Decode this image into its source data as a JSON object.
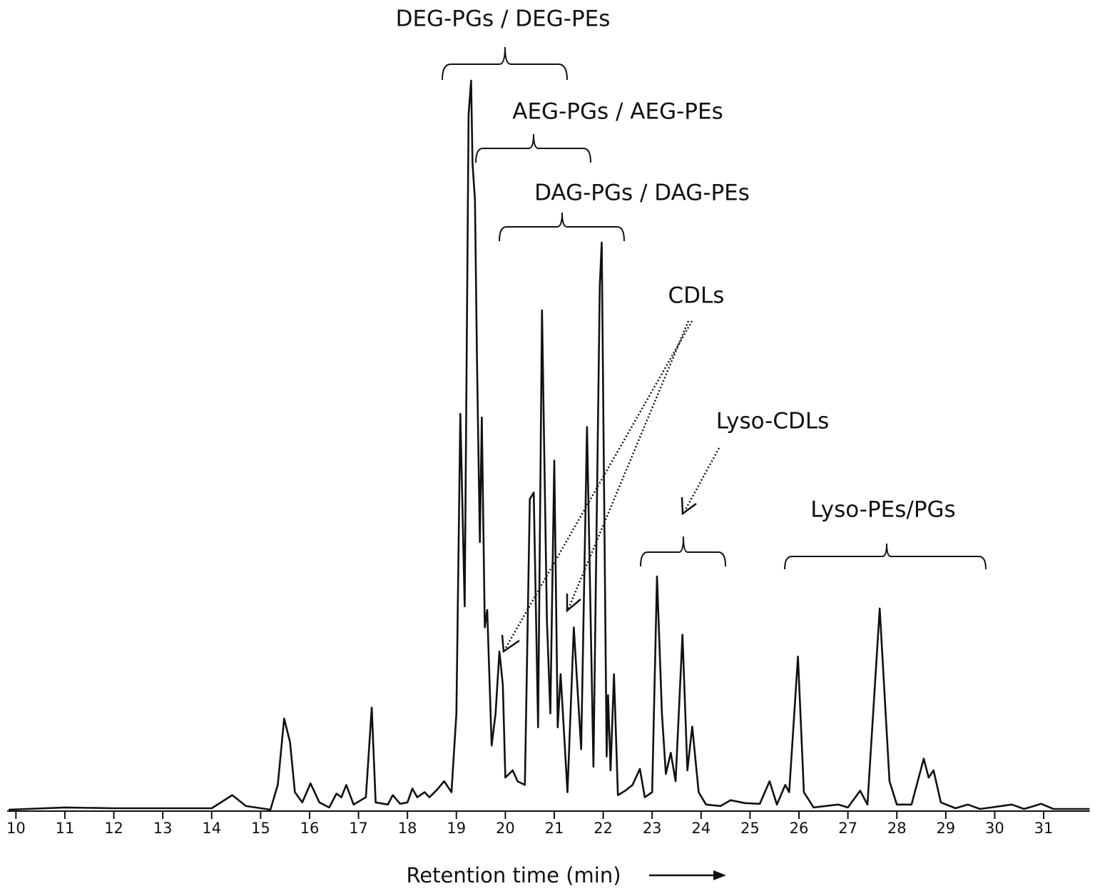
{
  "chart_data": {
    "type": "line",
    "x_label": "Retention time (min)",
    "annotations": [
      "DEG-PGs / DEG-PEs",
      "AEG-PGs / AEG-PEs",
      "DAG-PGs / DAG-PEs",
      "CDLs",
      "Lyso-CDLs",
      "Lyso-PEs/PGs"
    ],
    "color": "#111111",
    "xlim": [
      9.82,
      31.94
    ],
    "ylim": [
      0,
      102
    ],
    "xticks": [
      10,
      11,
      12,
      13,
      14,
      15,
      16,
      17,
      18,
      19,
      20,
      21,
      22,
      23,
      24,
      25,
      26,
      27,
      28,
      29,
      30,
      31
    ],
    "x": [
      9.85,
      11.0,
      12.0,
      14.0,
      14.42,
      14.7,
      15.2,
      15.35,
      15.48,
      15.6,
      15.7,
      15.85,
      16.02,
      16.2,
      16.4,
      16.55,
      16.65,
      16.75,
      16.9,
      17.15,
      17.27,
      17.35,
      17.6,
      17.7,
      17.85,
      18.0,
      18.1,
      18.2,
      18.35,
      18.45,
      18.6,
      18.75,
      18.9,
      19.0,
      19.08,
      19.17,
      19.25,
      19.3,
      19.33,
      19.38,
      19.42,
      19.48,
      19.52,
      19.58,
      19.63,
      19.72,
      19.8,
      19.88,
      19.95,
      20.0,
      20.15,
      20.25,
      20.4,
      20.5,
      20.58,
      20.67,
      20.75,
      20.85,
      20.92,
      21.0,
      21.07,
      21.13,
      21.27,
      21.4,
      21.55,
      21.67,
      21.8,
      21.93,
      21.97,
      22.07,
      22.1,
      22.15,
      22.22,
      22.3,
      22.45,
      22.6,
      22.75,
      22.85,
      23.0,
      23.1,
      23.2,
      23.28,
      23.38,
      23.48,
      23.62,
      23.72,
      23.82,
      23.95,
      24.1,
      24.4,
      24.6,
      24.9,
      25.2,
      25.4,
      25.55,
      25.72,
      25.8,
      25.98,
      26.1,
      26.3,
      26.8,
      27.0,
      27.25,
      27.4,
      27.65,
      27.85,
      28.0,
      28.3,
      28.55,
      28.65,
      28.75,
      28.9,
      29.2,
      29.45,
      29.7,
      30.35,
      30.6,
      30.95,
      31.2,
      31.94
    ],
    "values": [
      0,
      0.3,
      0.2,
      0.2,
      2.0,
      0.5,
      0,
      3.4,
      12.5,
      9.3,
      2.4,
      1.0,
      3.6,
      1.0,
      0.3,
      2.2,
      1.7,
      3.4,
      0.7,
      1.7,
      14.0,
      1.0,
      0.7,
      2.0,
      0.8,
      1.0,
      2.9,
      1.7,
      2.4,
      1.7,
      2.7,
      3.9,
      2.4,
      13.2,
      54.3,
      27.9,
      95.4,
      100,
      88.6,
      83.7,
      62.0,
      36.7,
      53.8,
      25.0,
      27.4,
      8.8,
      13.2,
      21.7,
      17.1,
      4.4,
      5.4,
      3.9,
      3.4,
      42.6,
      43.5,
      11.3,
      68.5,
      25.9,
      13.2,
      47.9,
      11.3,
      18.6,
      2.4,
      25.0,
      8.3,
      52.5,
      5.9,
      71.9,
      77.8,
      7.3,
      15.7,
      5.4,
      18.6,
      2.0,
      2.6,
      3.4,
      5.6,
      1.7,
      2.4,
      32.0,
      13.2,
      4.9,
      7.8,
      3.9,
      24.0,
      5.4,
      11.4,
      2.4,
      0.7,
      0.5,
      1.3,
      0.9,
      0.8,
      3.9,
      0.7,
      3.4,
      2.4,
      21.0,
      2.4,
      0.3,
      0.7,
      0.3,
      2.6,
      0.7,
      27.6,
      3.9,
      0.7,
      0.7,
      7.0,
      4.4,
      5.4,
      1.0,
      0.2,
      0.7,
      0.1,
      0.7,
      0.1,
      0.8,
      0.1,
      0.1
    ]
  }
}
